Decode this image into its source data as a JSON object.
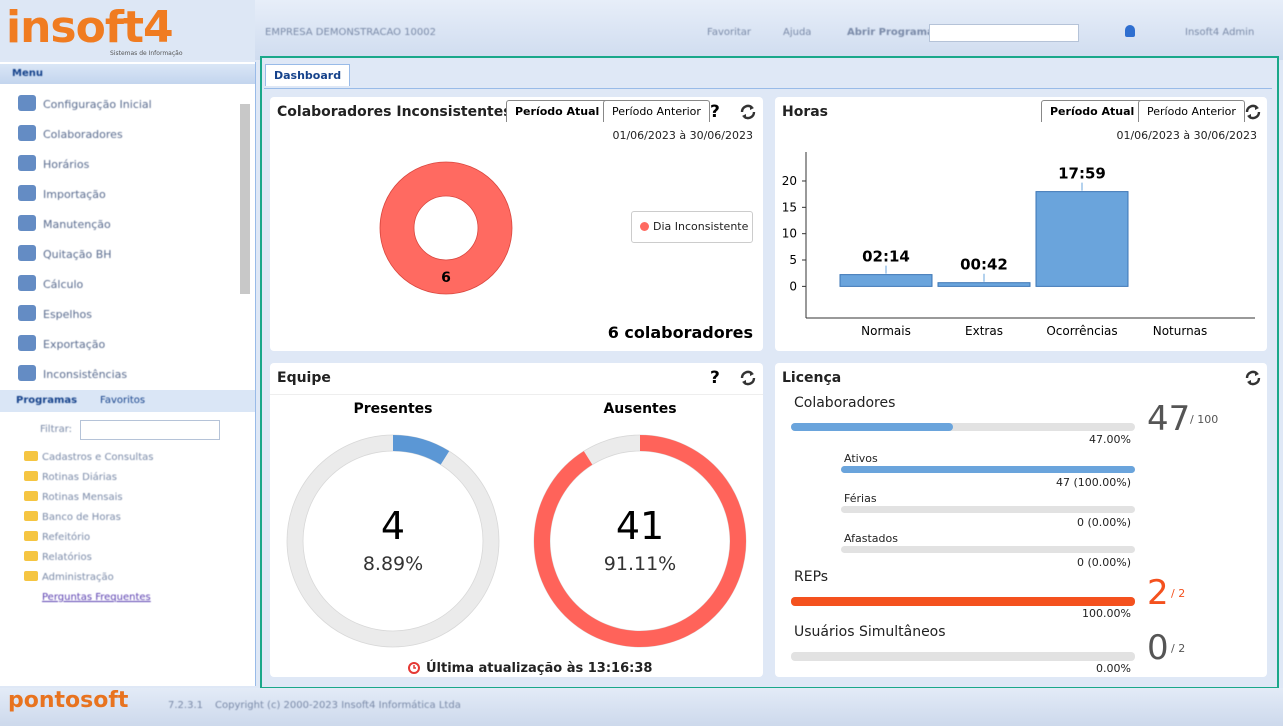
{
  "header": {
    "logo": "insoft4",
    "logo_sub": "Sistemas de Informação",
    "company": "EMPRESA DEMONSTRACAO 10002",
    "favorites": "Favoritar",
    "help": "Ajuda",
    "open_program": "Abrir Programa:",
    "user": "Insoft4 Admin"
  },
  "sidebar": {
    "menu_title": "Menu",
    "menu_items": [
      "Configuração Inicial",
      "Colaboradores",
      "Horários",
      "Importação",
      "Manutenção",
      "Quitação BH",
      "Cálculo",
      "Espelhos",
      "Exportação",
      "Inconsistências"
    ],
    "tabs": [
      "Programas",
      "Favoritos"
    ],
    "filter_label": "Filtrar:",
    "tree": [
      "Cadastros e Consultas",
      "Rotinas Diárias",
      "Rotinas Mensais",
      "Banco de Horas",
      "Refeitório",
      "Relatórios",
      "Administração"
    ],
    "link": "Perguntas Frequentes"
  },
  "tab": "Dashboard",
  "inconsistent": {
    "title": "Colaboradores Inconsistentes",
    "tabs": [
      "Período Atual",
      "Período Anterior"
    ],
    "help": "?",
    "period": "01/06/2023 à 30/06/2023",
    "value": 6,
    "legend": "Dia Inconsistente",
    "total": "6 colaboradores"
  },
  "hours": {
    "title": "Horas",
    "tabs": [
      "Período Atual",
      "Período Anterior"
    ],
    "period": "01/06/2023 à 30/06/2023",
    "chart": {
      "type": "bar",
      "categories": [
        "Normais",
        "Extras",
        "Ocorrências",
        "Noturnas"
      ],
      "values": [
        2.233,
        0.7,
        17.983,
        null
      ],
      "value_labels": [
        "02:14",
        "00:42",
        "17:59",
        null
      ],
      "color": "#6aa4dc",
      "ylim": [
        -6,
        25.5
      ],
      "yticks": [
        0,
        5,
        10,
        15,
        20
      ]
    }
  },
  "team": {
    "title": "Equipe",
    "help": "?",
    "present": {
      "label": "Presentes",
      "value": 4,
      "percent": 8.89,
      "percent_label": "8.89%",
      "color": "#5b97d5"
    },
    "absent": {
      "label": "Ausentes",
      "value": 41,
      "percent": 91.11,
      "percent_label": "91.11%",
      "color": "#ff635a"
    },
    "updated": "Última atualização às 13:16:38"
  },
  "license": {
    "title": "Licença",
    "collaborators": {
      "label": "Colaboradores",
      "value": 47,
      "limit": "/ 100",
      "percent": 47,
      "percent_label": "47.00%",
      "color": "#6aa4dc"
    },
    "sub": [
      {
        "label": "Ativos",
        "percent": 100,
        "percent_label": "47 (100.00%)"
      },
      {
        "label": "Férias",
        "percent": 0,
        "percent_label": "0 (0.00%)"
      },
      {
        "label": "Afastados",
        "percent": 0,
        "percent_label": "0 (0.00%)"
      }
    ],
    "reps": {
      "label": "REPs",
      "value": 2,
      "limit": "/ 2",
      "percent": 100,
      "percent_label": "100.00%",
      "color": "#f4511e"
    },
    "users": {
      "label": "Usuários Simultâneos",
      "value": 0,
      "limit": "/ 2",
      "percent": 0,
      "percent_label": "0.00%",
      "color": "#6aa4dc"
    }
  },
  "footer": {
    "logo": "pontosoft",
    "version": "7.2.3.1",
    "copyright": "Copyright (c) 2000-2023 Insoft4 Informática Ltda"
  }
}
